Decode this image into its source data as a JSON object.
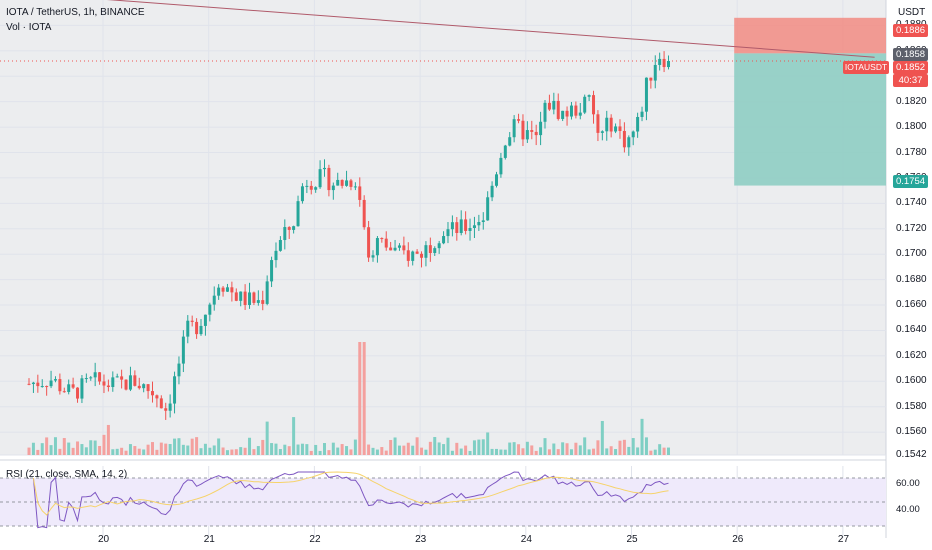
{
  "header": {
    "symbol": "IOTA / TetherUS, 1h, BINANCE",
    "volume_label": "Vol · IOTA",
    "currency": "USDT"
  },
  "price_axis": {
    "ticks": [
      "0.1880",
      "0.1860",
      "0.1840",
      "0.1820",
      "0.1800",
      "0.1780",
      "0.1760",
      "0.1740",
      "0.1720",
      "0.1700",
      "0.1680",
      "0.1660",
      "0.1640",
      "0.1620",
      "0.1600",
      "0.1580",
      "0.1560",
      "0.1542"
    ]
  },
  "badges": {
    "stop": "0.1886",
    "entry": "0.1858",
    "last": "0.1852",
    "symbol_tag": "IOTAUSDT",
    "countdown": "40:37",
    "target": "0.1754"
  },
  "time_axis": {
    "ticks": [
      "20",
      "21",
      "22",
      "23",
      "24",
      "25",
      "26",
      "27"
    ]
  },
  "rsi": {
    "label": "RSI (21, close, SMA, 14, 2)",
    "ticks": [
      "60.00",
      "40.00"
    ]
  },
  "colors": {
    "up": "#26a69a",
    "down": "#ef5350",
    "up_vol": "#7fcfc4",
    "down_vol": "#f4a09e",
    "stop_zone": "#f28b82",
    "target_zone": "#8fcdc3",
    "trendline": "#b05a6a",
    "rsi_line": "#7e57c2",
    "rsi_ma": "#f6d36b"
  },
  "chart_data": {
    "type": "candlestick",
    "y_range": [
      0.1542,
      0.19
    ],
    "x_range_days": [
      19.3,
      27.3
    ],
    "last_price": 0.1852,
    "trendline": {
      "from": [
        19.3,
        0.1905
      ],
      "to": [
        27.3,
        0.1855
      ]
    },
    "position": {
      "entry": 0.1858,
      "stop": 0.1886,
      "target": 0.1754,
      "start_day": 26.0
    },
    "series": [
      {
        "name": "candles",
        "anchors": [
          [
            19.3,
            0.1598
          ],
          [
            19.5,
            0.1602
          ],
          [
            19.7,
            0.159
          ],
          [
            19.9,
            0.16
          ],
          [
            20.1,
            0.1597
          ],
          [
            20.3,
            0.16
          ],
          [
            20.5,
            0.159
          ],
          [
            20.6,
            0.1578
          ],
          [
            20.7,
            0.1608
          ],
          [
            20.8,
            0.164
          ],
          [
            20.9,
            0.1645
          ],
          [
            21.0,
            0.166
          ],
          [
            21.1,
            0.168
          ],
          [
            21.2,
            0.1672
          ],
          [
            21.3,
            0.1665
          ],
          [
            21.5,
            0.1662
          ],
          [
            21.6,
            0.17
          ],
          [
            21.7,
            0.1712
          ],
          [
            21.8,
            0.1725
          ],
          [
            21.9,
            0.1758
          ],
          [
            22.1,
            0.176
          ],
          [
            22.2,
            0.1755
          ],
          [
            22.4,
            0.176
          ],
          [
            22.5,
            0.17
          ],
          [
            22.6,
            0.171
          ],
          [
            22.8,
            0.17
          ],
          [
            23.0,
            0.17
          ],
          [
            23.2,
            0.1718
          ],
          [
            23.4,
            0.172
          ],
          [
            23.6,
            0.173
          ],
          [
            23.7,
            0.176
          ],
          [
            23.8,
            0.179
          ],
          [
            23.9,
            0.18
          ],
          [
            24.1,
            0.179
          ],
          [
            24.2,
            0.182
          ],
          [
            24.35,
            0.181
          ],
          [
            24.5,
            0.1815
          ],
          [
            24.6,
            0.182
          ],
          [
            24.7,
            0.179
          ],
          [
            24.8,
            0.1805
          ],
          [
            24.95,
            0.1788
          ],
          [
            25.05,
            0.18
          ],
          [
            25.15,
            0.1835
          ],
          [
            25.25,
            0.1858
          ],
          [
            25.35,
            0.1852
          ]
        ]
      },
      {
        "name": "Vol · IOTA",
        "spike_day": 22.45
      },
      {
        "name": "RSI (21, close, SMA, 14, 2)",
        "range": [
          20,
          80
        ]
      }
    ]
  }
}
